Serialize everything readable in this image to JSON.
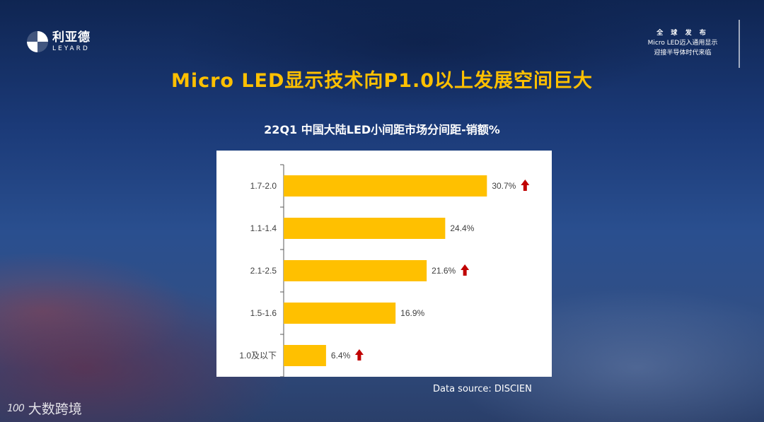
{
  "brand": {
    "name_cn": "利亚德",
    "name_en": "LEYARD"
  },
  "release_note": {
    "line1": "全 球 发 布",
    "line2": "Micro LED迈入通用显示",
    "line3": "迎接半导体时代来临"
  },
  "main_title": "Micro LED显示技术向P1.0以上发展空间巨大",
  "watermark": {
    "logo": "100",
    "text": "大数跨境"
  },
  "chart_data": {
    "type": "bar",
    "orientation": "horizontal",
    "title": "22Q1 中国大陆LED小间距市场分间距-销额%",
    "source": "Data source: DISCIEN",
    "categories": [
      "1.7-2.0",
      "1.1-1.4",
      "2.1-2.5",
      "1.5-1.6",
      "1.0及以下"
    ],
    "values": [
      30.7,
      24.4,
      21.6,
      16.9,
      6.4
    ],
    "labels": [
      "30.7%",
      "24.4%",
      "21.6%",
      "16.9%",
      "6.4%"
    ],
    "up_arrow": [
      true,
      false,
      true,
      false,
      true
    ],
    "xlim": [
      0,
      39
    ],
    "grid": false,
    "colors": {
      "bar": "#ffc000",
      "arrow": "#c00000",
      "axis": "#595959",
      "text": "#404040"
    }
  }
}
